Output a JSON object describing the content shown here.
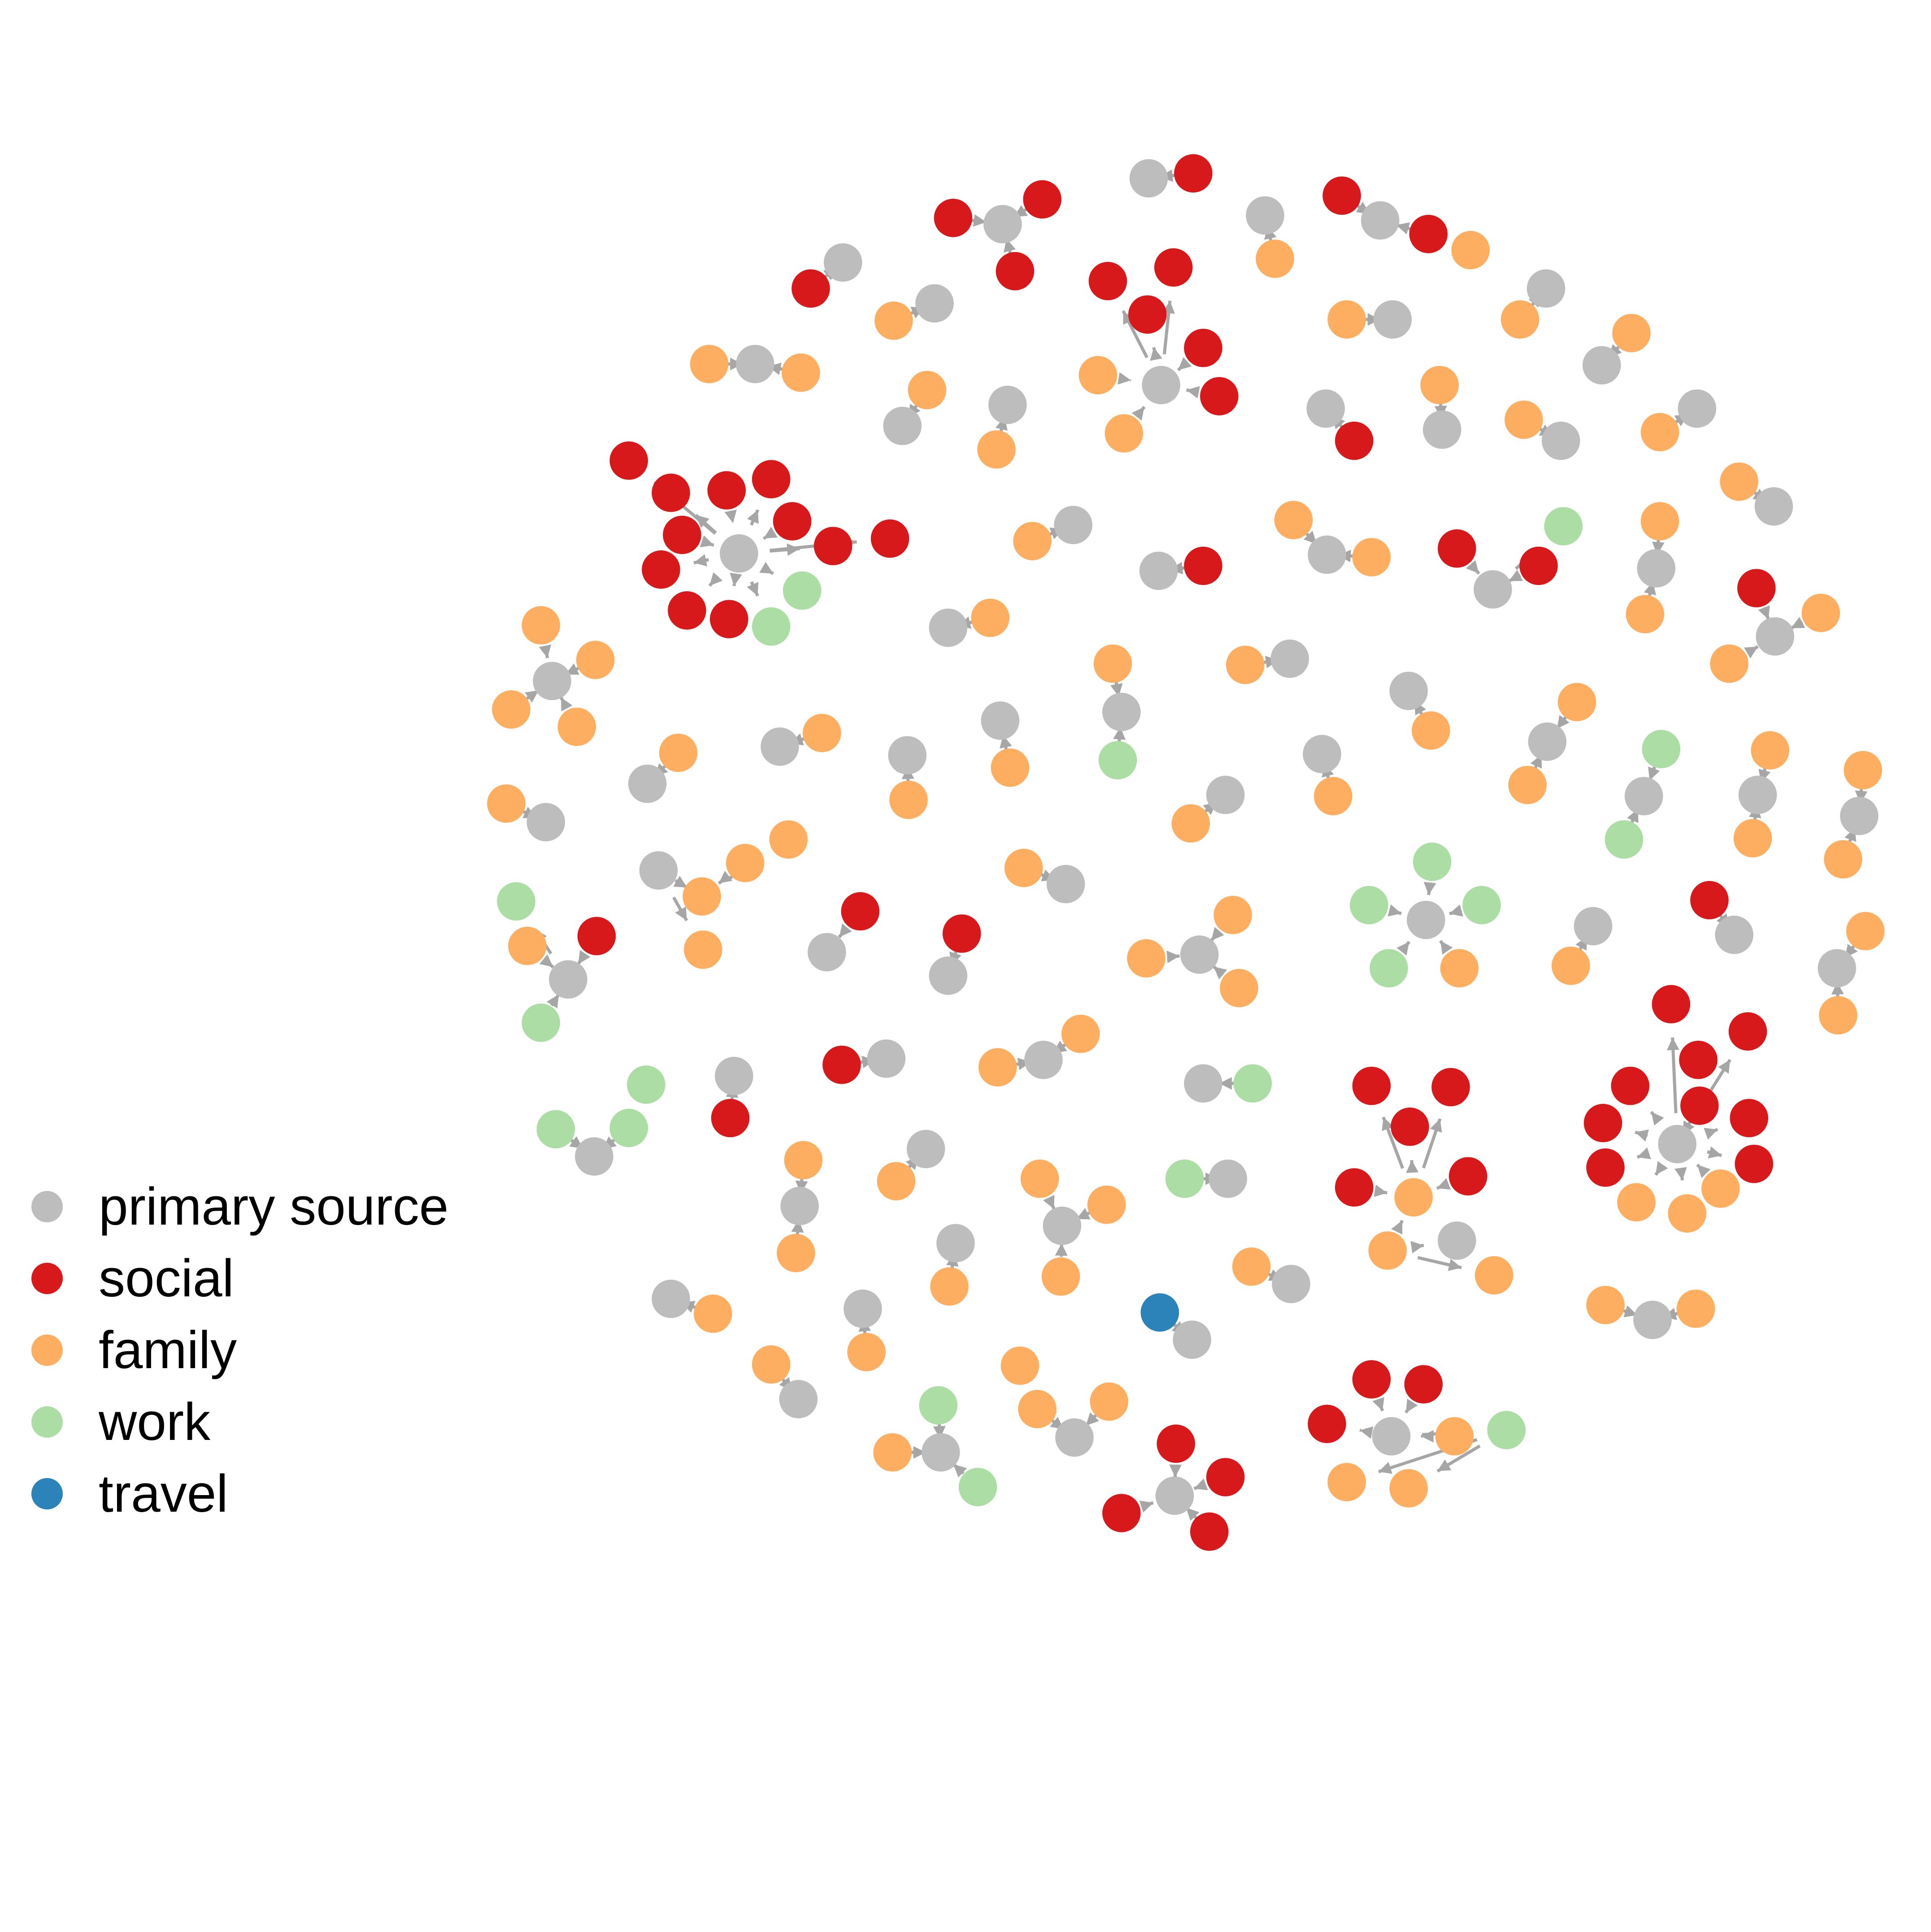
{
  "legend": {
    "items": [
      {
        "label": "primary source",
        "color": "#BDBDBD"
      },
      {
        "label": "social",
        "color": "#D7191C"
      },
      {
        "label": "family",
        "color": "#FDAE61"
      },
      {
        "label": "work",
        "color": "#ABDDA4"
      },
      {
        "label": "travel",
        "color": "#2B83BA"
      }
    ]
  },
  "edge_color": "#A6A6A6",
  "network": {
    "components": [
      {
        "center": "primary source",
        "contacts": [
          "social",
          "social",
          "social",
          "social",
          "social",
          "social",
          "social",
          "social",
          "social",
          "social",
          "social",
          "work",
          "work"
        ]
      },
      {
        "center": "primary source",
        "contacts": [
          "social",
          "social",
          "social",
          "social",
          "social",
          "social",
          "social",
          "social",
          "social",
          "family",
          "family",
          "family"
        ]
      },
      {
        "center": "primary source",
        "contacts": [
          "social",
          "social",
          "social",
          "social",
          "social",
          "family",
          "family"
        ]
      },
      {
        "center": "primary source",
        "contacts": [
          "social",
          "social",
          "social",
          "family",
          "work"
        ],
        "chained": [
          "family",
          "family"
        ]
      },
      {
        "center": "family",
        "contacts": [
          "social",
          "social",
          "social",
          "social",
          "social",
          "family"
        ],
        "chained": [
          "primary source",
          "family",
          "family"
        ]
      },
      {
        "center": "primary source",
        "contacts": [
          "social",
          "social",
          "social",
          "social"
        ]
      },
      {
        "center": "primary source",
        "contacts": [
          "work",
          "work",
          "work",
          "work",
          "family"
        ]
      },
      {
        "center": "primary source",
        "contacts": [
          "social",
          "social",
          "work"
        ]
      },
      {
        "center": "primary source",
        "contacts": [
          "social",
          "family",
          "family"
        ]
      },
      {
        "center": "primary source",
        "contacts": [
          "family",
          "family",
          "family",
          "family"
        ]
      },
      {
        "center": "primary source",
        "contacts": [
          "social",
          "family",
          "work",
          "work"
        ]
      },
      {
        "center": "family",
        "contacts": [
          "family",
          "family",
          "primary source"
        ],
        "chained": [
          "family"
        ]
      },
      {
        "center": "primary source",
        "contacts": [
          "family",
          "family",
          "family"
        ]
      },
      {
        "center": "primary source",
        "contacts": [
          "family",
          "family",
          "family"
        ]
      },
      {
        "center": "primary source",
        "contacts": [
          "work",
          "family",
          "work"
        ]
      },
      {
        "center": "primary source",
        "contacts": [
          "family",
          "family",
          "family"
        ]
      },
      {
        "center": "primary source",
        "contacts": [
          "social",
          "social",
          "social"
        ]
      },
      {
        "center": "primary source",
        "contacts": [
          "work",
          "work",
          "work"
        ]
      },
      {
        "center": "primary source",
        "contacts": [
          "social",
          "social",
          "family"
        ]
      },
      {
        "center": "primary source",
        "contacts": [
          "family",
          "family"
        ]
      },
      {
        "center": "primary source",
        "contacts": [
          "family",
          "family"
        ]
      },
      {
        "center": "primary source",
        "contacts": [
          "family",
          "family"
        ]
      },
      {
        "center": "primary source",
        "contacts": [
          "family",
          "family"
        ]
      },
      {
        "center": "primary source",
        "contacts": [
          "family",
          "family"
        ]
      },
      {
        "center": "primary source",
        "contacts": [
          "family",
          "family"
        ]
      },
      {
        "center": "primary source",
        "contacts": [
          "work",
          "work"
        ]
      },
      {
        "center": "primary source",
        "contacts": [
          "family",
          "family"
        ]
      },
      {
        "center": "primary source",
        "contacts": [
          "family",
          "family"
        ]
      },
      {
        "center": "primary source",
        "contacts": [
          "family",
          "family"
        ]
      },
      {
        "center": "primary source",
        "contacts": [
          "family",
          "work"
        ]
      },
      {
        "center": "primary source",
        "contacts": [
          "family",
          "family"
        ]
      },
      {
        "center": "primary source",
        "contacts": [
          "social",
          "social"
        ]
      },
      {
        "center": "primary source",
        "contacts": [
          "social"
        ]
      },
      {
        "center": "primary source",
        "contacts": [
          "family"
        ]
      },
      {
        "center": "primary source",
        "contacts": [
          "family"
        ]
      },
      {
        "center": "primary source",
        "contacts": [
          "family"
        ]
      },
      {
        "center": "primary source",
        "contacts": [
          "family"
        ]
      },
      {
        "center": "primary source",
        "contacts": [
          "family"
        ]
      },
      {
        "center": "primary source",
        "contacts": [
          "social"
        ]
      },
      {
        "center": "primary source",
        "contacts": [
          "family"
        ]
      },
      {
        "center": "primary source",
        "contacts": [
          "family"
        ]
      },
      {
        "center": "primary source",
        "contacts": [
          "family"
        ]
      },
      {
        "center": "primary source",
        "contacts": [
          "family"
        ]
      },
      {
        "center": "primary source",
        "contacts": [
          "family"
        ]
      },
      {
        "center": "primary source",
        "contacts": [
          "family"
        ]
      },
      {
        "center": "primary source",
        "contacts": [
          "family"
        ]
      },
      {
        "center": "primary source",
        "contacts": [
          "family"
        ]
      },
      {
        "center": "primary source",
        "contacts": [
          "family"
        ]
      },
      {
        "center": "primary source",
        "contacts": [
          "family"
        ]
      },
      {
        "center": "primary source",
        "contacts": [
          "family"
        ]
      },
      {
        "center": "primary source",
        "contacts": [
          "social"
        ]
      },
      {
        "center": "primary source",
        "contacts": [
          "family"
        ]
      },
      {
        "center": "primary source",
        "contacts": [
          "family"
        ]
      },
      {
        "center": "primary source",
        "contacts": [
          "family"
        ]
      },
      {
        "center": "primary source",
        "contacts": [
          "family"
        ]
      },
      {
        "center": "primary source",
        "contacts": [
          "family"
        ]
      },
      {
        "center": "primary source",
        "contacts": [
          "family"
        ]
      },
      {
        "center": "primary source",
        "contacts": [
          "family"
        ]
      },
      {
        "center": "primary source",
        "contacts": [
          "family"
        ]
      },
      {
        "center": "primary source",
        "contacts": [
          "family"
        ]
      },
      {
        "center": "primary source",
        "contacts": [
          "family"
        ]
      },
      {
        "center": "primary source",
        "contacts": [
          "social"
        ]
      },
      {
        "center": "primary source",
        "contacts": [
          "social"
        ]
      },
      {
        "center": "primary source",
        "contacts": [
          "social"
        ]
      },
      {
        "center": "primary source",
        "contacts": [
          "social"
        ]
      },
      {
        "center": "primary source",
        "contacts": [
          "social"
        ]
      },
      {
        "center": "primary source",
        "contacts": [
          "work"
        ]
      },
      {
        "center": "primary source",
        "contacts": [
          "work"
        ]
      },
      {
        "center": "primary source",
        "contacts": [
          "family"
        ]
      },
      {
        "center": "primary source",
        "contacts": [
          "family"
        ]
      },
      {
        "center": "primary source",
        "contacts": [
          "family"
        ]
      },
      {
        "center": "primary source",
        "contacts": [
          "family"
        ]
      },
      {
        "center": "primary source",
        "contacts": [
          "travel"
        ]
      }
    ]
  }
}
